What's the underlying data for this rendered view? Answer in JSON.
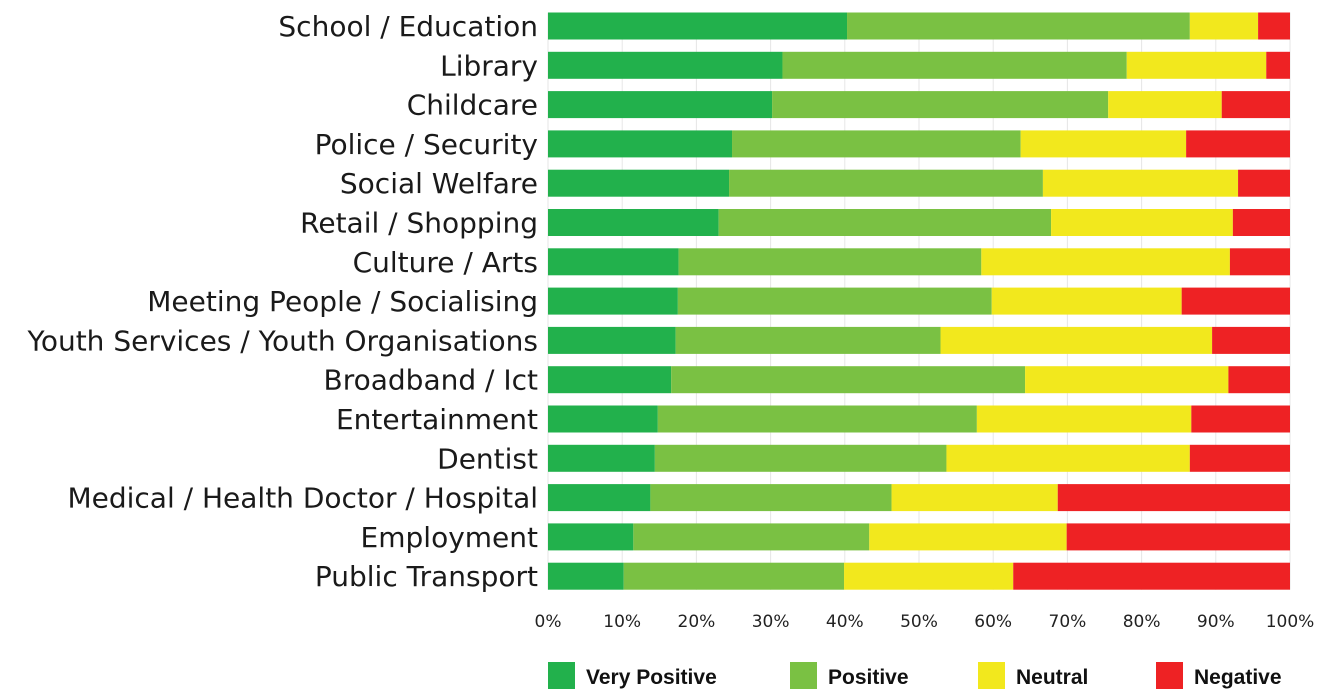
{
  "chart_data": {
    "type": "bar",
    "orientation": "horizontal",
    "stacked": true,
    "percent_scale": true,
    "categories": [
      "School / Education",
      "Library",
      "Childcare",
      "Police / Security",
      "Social Welfare",
      "Retail / Shopping",
      "Culture / Arts",
      "Meeting People / Socialising",
      "Youth Services / Youth Organisations",
      "Broadband / Ict",
      "Entertainment",
      "Dentist",
      "Medical / Health Doctor / Hospital",
      "Employment",
      "Public Transport"
    ],
    "series": [
      {
        "name": "Very Positive",
        "color": "#22b14c",
        "values": [
          40.3,
          31.6,
          30.2,
          24.8,
          24.4,
          23.0,
          17.6,
          17.5,
          17.2,
          16.6,
          14.8,
          14.4,
          13.8,
          11.5,
          10.2
        ]
      },
      {
        "name": "Positive",
        "color": "#7ac143",
        "values": [
          46.2,
          46.4,
          45.3,
          38.9,
          42.3,
          44.8,
          40.8,
          42.3,
          35.7,
          47.7,
          43.0,
          39.3,
          32.5,
          31.8,
          29.7
        ]
      },
      {
        "name": "Neutral",
        "color": "#f2e81d",
        "values": [
          9.2,
          18.8,
          15.3,
          22.3,
          26.3,
          24.5,
          33.5,
          25.6,
          36.6,
          27.4,
          28.9,
          32.8,
          22.4,
          26.6,
          22.8
        ]
      },
      {
        "name": "Negative",
        "color": "#ee2224",
        "values": [
          4.3,
          3.2,
          9.2,
          14.0,
          7.0,
          7.7,
          8.1,
          14.6,
          10.5,
          8.3,
          13.3,
          13.5,
          31.3,
          30.1,
          37.3
        ]
      }
    ],
    "xlim": [
      0,
      100
    ],
    "xticks": [
      "0%",
      "10%",
      "20%",
      "30%",
      "40%",
      "50%",
      "60%",
      "70%",
      "80%",
      "90%",
      "100%"
    ],
    "grid": true,
    "legend": {
      "position": "bottom"
    }
  }
}
